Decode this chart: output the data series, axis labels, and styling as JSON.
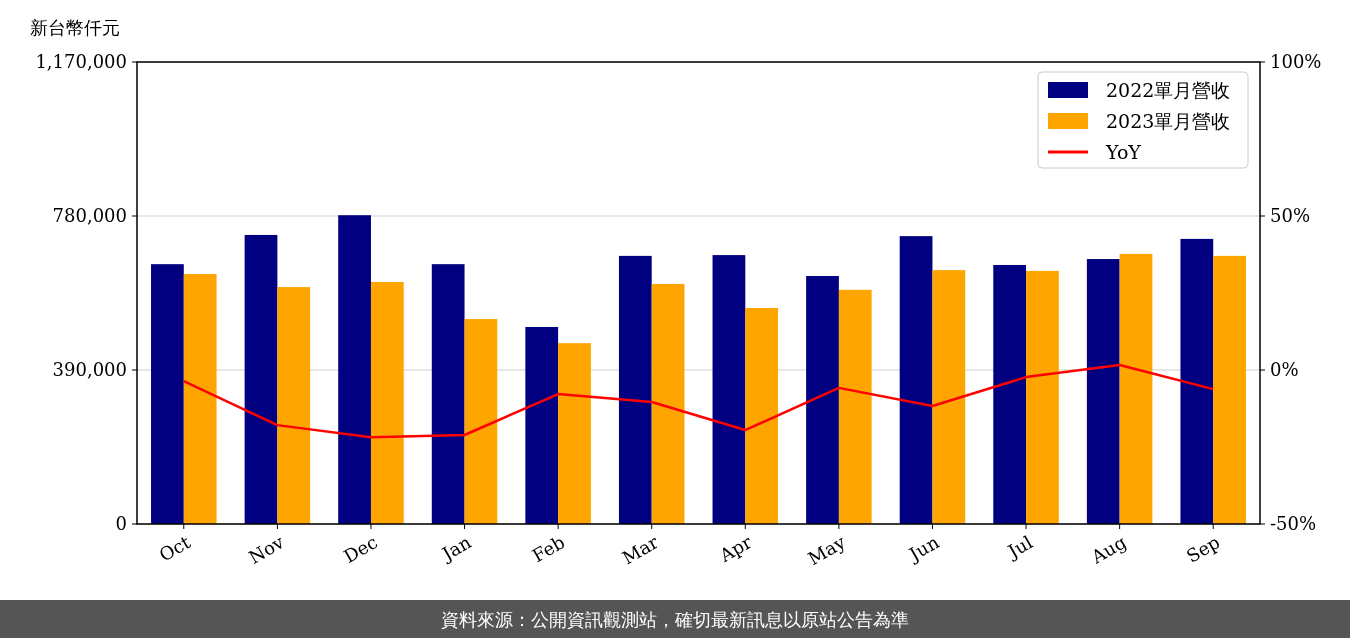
{
  "chart_data": {
    "type": "bar",
    "ylabel": "新台幣仟元",
    "categories": [
      "Oct",
      "Nov",
      "Dec",
      "Jan",
      "Feb",
      "Mar",
      "Apr",
      "May",
      "Jun",
      "Jul",
      "Aug",
      "Sep"
    ],
    "series": [
      {
        "name": "2022單月營收",
        "color": "#000080",
        "values": [
          658000,
          732000,
          782000,
          658000,
          499000,
          679000,
          681000,
          628000,
          729000,
          656000,
          671000,
          722000
        ]
      },
      {
        "name": "2023單月營收",
        "color": "#ffa500",
        "values": [
          633000,
          600000,
          613000,
          519000,
          458000,
          608000,
          547000,
          593000,
          643000,
          641000,
          684000,
          679000
        ]
      },
      {
        "name": "YoY",
        "type": "line",
        "axis": "y2",
        "color": "#ff0000",
        "values": [
          -3.6,
          -17.9,
          -21.8,
          -21.1,
          -7.8,
          -10.4,
          -19.5,
          -5.8,
          -11.7,
          -2.3,
          1.6,
          -6.2
        ]
      }
    ],
    "ylim": [
      0,
      1170000
    ],
    "yticks": [
      0,
      {
        "value": 390000,
        "label": "390,000"
      },
      {
        "value": 780000,
        "label": "780,000"
      },
      {
        "value": 1170000,
        "label": "1,170,000"
      }
    ],
    "y2lim": [
      -50,
      100
    ],
    "y2ticks": [
      {
        "value": -50,
        "label": "-50%"
      },
      {
        "value": 0,
        "label": "0%"
      },
      {
        "value": 50,
        "label": "50%"
      },
      {
        "value": 100,
        "label": "100%"
      }
    ],
    "grid": "y",
    "legend": "top right",
    "marker": "none",
    "line_style": "solid",
    "annotations": [
      "資料來源：公開資訊觀測站，確切最新訊息以原站公告為準"
    ]
  }
}
